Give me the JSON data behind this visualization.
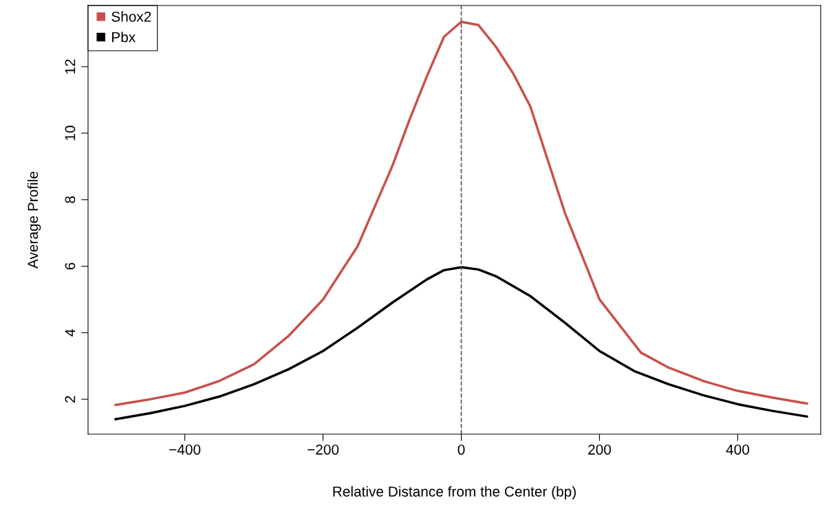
{
  "chart_data": {
    "type": "line",
    "xlabel": "Relative Distance from the Center (bp)",
    "ylabel": "Average Profile",
    "xlim": [
      -540,
      520
    ],
    "ylim": [
      0.95,
      13.84
    ],
    "xticks": [
      -400,
      -200,
      0,
      200,
      400
    ],
    "yticks": [
      2,
      4,
      6,
      8,
      10,
      12
    ],
    "legend": "top left",
    "grid": false,
    "marker": "none",
    "ref_lines": [
      {
        "axis": "x",
        "value": 0,
        "color": "#555555",
        "line_style": "dashed"
      }
    ],
    "series": [
      {
        "name": "Shox2",
        "color": "#c8504b",
        "x": [
          -500,
          -450,
          -400,
          -350,
          -300,
          -250,
          -200,
          -150,
          -100,
          -75,
          -50,
          -25,
          0,
          25,
          50,
          75,
          100,
          150,
          200,
          260,
          300,
          350,
          400,
          450,
          500
        ],
        "values": [
          1.83,
          2.0,
          2.2,
          2.55,
          3.05,
          3.9,
          5.0,
          6.6,
          9.0,
          10.4,
          11.7,
          12.9,
          13.35,
          13.25,
          12.6,
          11.8,
          10.8,
          7.6,
          5.0,
          3.4,
          2.95,
          2.55,
          2.25,
          2.05,
          1.87
        ]
      },
      {
        "name": "Pbx",
        "color": "#000000",
        "x": [
          -500,
          -450,
          -400,
          -350,
          -300,
          -250,
          -200,
          -150,
          -100,
          -50,
          -25,
          0,
          25,
          50,
          100,
          150,
          200,
          250,
          300,
          350,
          400,
          450,
          500
        ],
        "values": [
          1.4,
          1.58,
          1.8,
          2.08,
          2.45,
          2.9,
          3.45,
          4.15,
          4.9,
          5.6,
          5.88,
          5.97,
          5.9,
          5.7,
          5.1,
          4.3,
          3.45,
          2.85,
          2.45,
          2.12,
          1.85,
          1.65,
          1.48
        ]
      }
    ]
  }
}
